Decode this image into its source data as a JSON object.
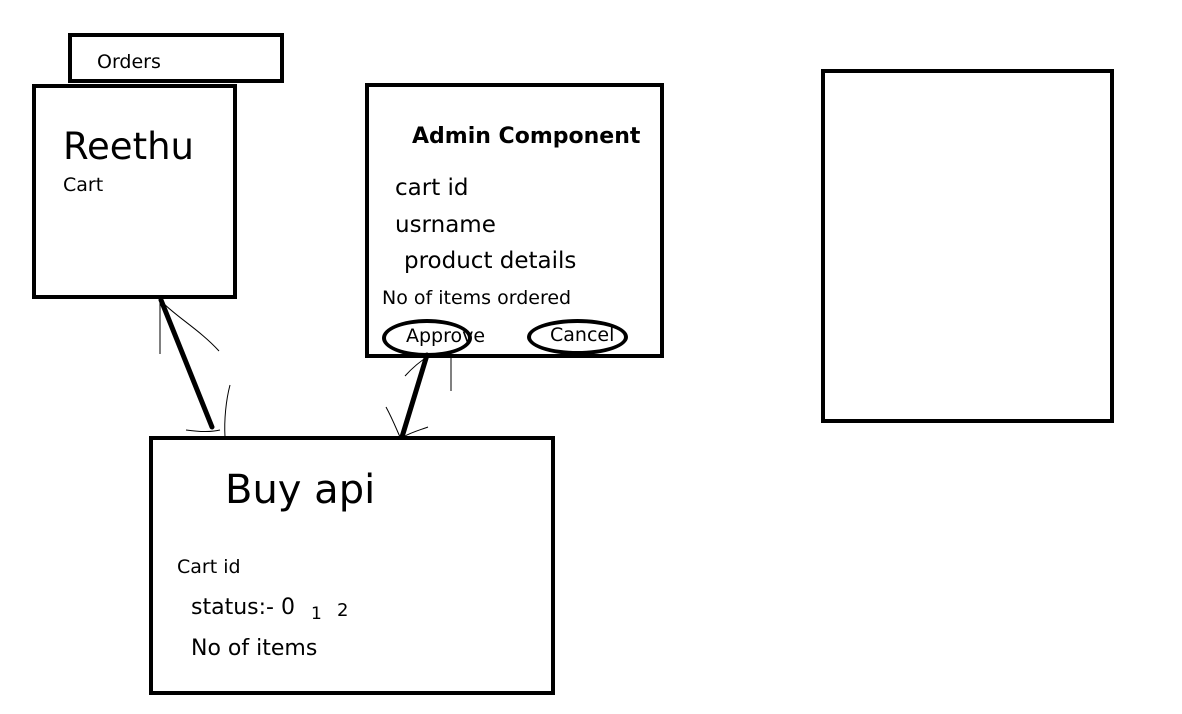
{
  "orders_tab": {
    "label": "Orders"
  },
  "user_box": {
    "name": "Reethu",
    "cart_label": "Cart"
  },
  "admin_component": {
    "title": "Admin Component",
    "fields": [
      "cart id",
      "usrname",
      "product details",
      "No of items ordered"
    ],
    "approve_label": "Approve",
    "cancel_label": "Cancel"
  },
  "buy_api": {
    "title": "Buy api",
    "cart_id_label": "Cart id",
    "status_label": "status:- 0",
    "status_value_1": "1",
    "status_value_2": "2",
    "items_label": "No of items"
  },
  "colors": {
    "ink": "#000000",
    "background": "#ffffff"
  }
}
